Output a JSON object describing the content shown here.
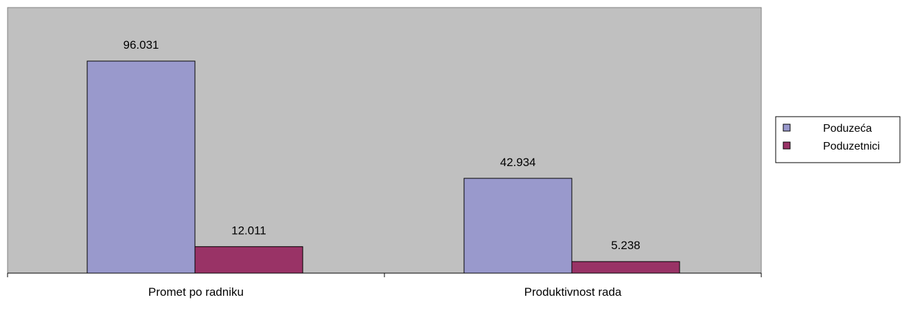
{
  "chart_data": {
    "type": "bar",
    "title": "",
    "xlabel": "",
    "ylabel": "",
    "categories": [
      "Promet po radniku",
      "Produktivnost rada"
    ],
    "series": [
      {
        "name": "Poduzeća",
        "values": [
          96031,
          42934
        ],
        "labels": [
          "96.031",
          "42.934"
        ],
        "color": "#9999cc"
      },
      {
        "name": "Poduzetnici",
        "values": [
          12011,
          5238
        ],
        "labels": [
          "12.011",
          "5.238"
        ],
        "color": "#993366"
      }
    ],
    "ylim": [
      0,
      110000
    ],
    "grid": false,
    "legend_position": "right",
    "plot_background": "#c0c0c0"
  }
}
